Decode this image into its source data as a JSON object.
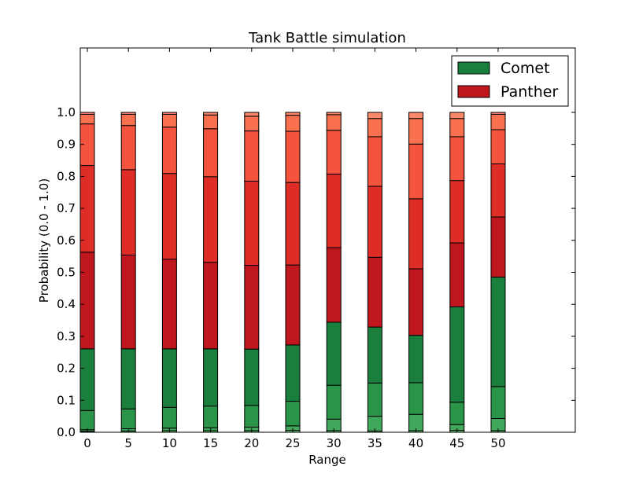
{
  "chart_data": {
    "type": "bar",
    "stacked": true,
    "title": "Tank Battle simulation",
    "xlabel": "Range",
    "ylabel": "Probability (0.0 - 1.0)",
    "ylim": [
      0.0,
      1.0
    ],
    "yticks": [
      "0.0",
      "0.1",
      "0.2",
      "0.3",
      "0.4",
      "0.5",
      "0.6",
      "0.7",
      "0.8",
      "0.9",
      "1.0"
    ],
    "categories": [
      "0",
      "5",
      "10",
      "15",
      "20",
      "25",
      "30",
      "35",
      "40",
      "45",
      "50"
    ],
    "grid": false,
    "legend": {
      "placement": "top-right",
      "entries": [
        {
          "label": "Comet",
          "color": "#1a7f3c"
        },
        {
          "label": "Panther",
          "color": "#c0171f"
        }
      ]
    },
    "series": [
      {
        "group": "Comet",
        "color": "#5cbc6a",
        "values": [
          0.003,
          0.004,
          0.005,
          0.005,
          0.005,
          0.006,
          0.005,
          0.004,
          0.005,
          0.006,
          0.005
        ]
      },
      {
        "group": "Comet",
        "color": "#3fa85a",
        "values": [
          0.005,
          0.007,
          0.008,
          0.009,
          0.011,
          0.014,
          0.036,
          0.046,
          0.051,
          0.018,
          0.038
        ]
      },
      {
        "group": "Comet",
        "color": "#2a9448",
        "values": [
          0.06,
          0.062,
          0.065,
          0.068,
          0.068,
          0.077,
          0.106,
          0.104,
          0.099,
          0.07,
          0.1
        ]
      },
      {
        "group": "Comet",
        "color": "#1a7f3c",
        "values": [
          0.193,
          0.188,
          0.183,
          0.179,
          0.176,
          0.176,
          0.197,
          0.175,
          0.148,
          0.298,
          0.342
        ]
      },
      {
        "group": "Panther",
        "color": "#c0171f",
        "values": [
          0.302,
          0.293,
          0.28,
          0.27,
          0.262,
          0.25,
          0.233,
          0.218,
          0.208,
          0.2,
          0.188
        ]
      },
      {
        "group": "Panther",
        "color": "#de2d26",
        "values": [
          0.271,
          0.267,
          0.268,
          0.268,
          0.263,
          0.258,
          0.23,
          0.222,
          0.219,
          0.195,
          0.166
        ]
      },
      {
        "group": "Panther",
        "color": "#f4533d",
        "values": [
          0.13,
          0.138,
          0.145,
          0.15,
          0.157,
          0.16,
          0.137,
          0.155,
          0.171,
          0.137,
          0.107
        ]
      },
      {
        "group": "Panther",
        "color": "#f9714f",
        "values": [
          0.03,
          0.035,
          0.04,
          0.043,
          0.046,
          0.05,
          0.049,
          0.057,
          0.08,
          0.057,
          0.048
        ]
      },
      {
        "group": "Panther",
        "color": "#fc8a6a",
        "values": [
          0.006,
          0.006,
          0.006,
          0.008,
          0.012,
          0.009,
          0.007,
          0.019,
          0.019,
          0.019,
          0.006
        ]
      }
    ]
  }
}
